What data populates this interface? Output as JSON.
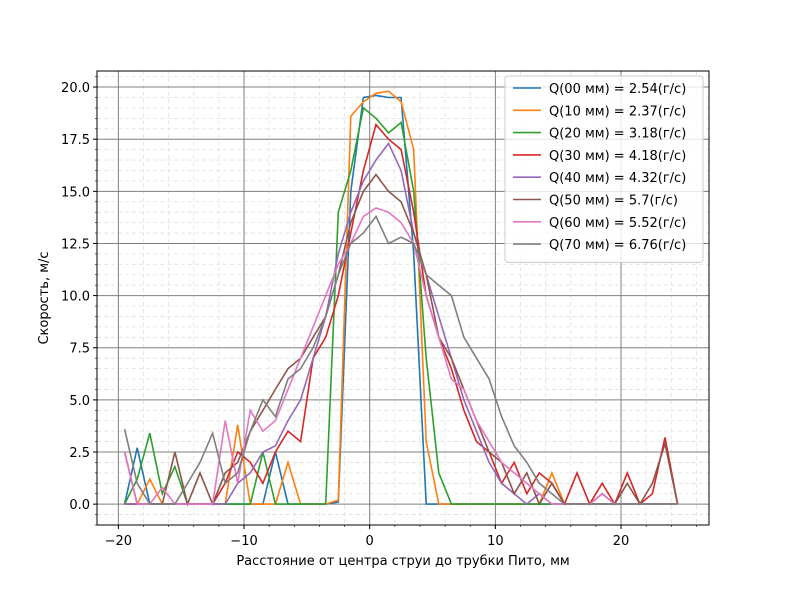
{
  "chart_data": {
    "type": "line",
    "xlabel": "Расстояние от центра струи до трубки Пито, мм",
    "ylabel": "Скорость, м/с",
    "x": [
      -19.5,
      -18.5,
      -17.5,
      -16.5,
      -15.5,
      -14.5,
      -13.5,
      -12.5,
      -11.5,
      -10.5,
      -9.5,
      -8.5,
      -7.5,
      -6.5,
      -5.5,
      -4.5,
      -3.5,
      -2.5,
      -1.5,
      -0.5,
      0.5,
      1.5,
      2.5,
      3.5,
      4.5,
      5.5,
      6.5,
      7.5,
      8.5,
      9.5,
      10.5,
      11.5,
      12.5,
      13.5,
      14.5,
      15.5,
      16.5,
      17.5,
      18.5,
      19.5,
      20.5,
      21.5,
      22.5,
      23.5,
      24.5
    ],
    "series": [
      {
        "name": "Q(00 мм) = 2.54(г/с)",
        "color": "#1f77b4",
        "values": [
          0,
          2.7,
          0,
          0,
          0,
          0,
          0,
          0,
          0,
          0,
          0,
          0,
          2.5,
          0,
          0,
          0,
          0,
          0.1,
          15,
          19.5,
          19.6,
          19.5,
          19.5,
          12,
          0,
          0,
          0,
          0,
          0,
          0,
          0,
          0,
          0,
          0,
          0,
          0,
          0,
          0,
          0,
          0,
          0,
          0,
          0,
          0,
          0
        ]
      },
      {
        "name": "Q(10 мм) = 2.37(г/с)",
        "color": "#ff7f0e",
        "values": [
          0,
          0,
          1.2,
          0,
          0,
          0,
          0,
          0,
          0,
          3.8,
          0,
          0,
          0,
          2,
          0,
          0,
          0,
          0.2,
          18.6,
          19.3,
          19.7,
          19.8,
          19.3,
          17,
          3,
          0,
          0,
          0,
          0,
          0,
          0,
          0,
          0,
          0,
          1.5,
          0,
          0,
          0,
          0,
          0,
          0,
          0,
          0,
          0,
          0
        ]
      },
      {
        "name": "Q(20 мм) = 3.18(г/с)",
        "color": "#2ca02c",
        "values": [
          0,
          1.2,
          3.4,
          0.5,
          1.8,
          0,
          0,
          0,
          0,
          0,
          0,
          2.5,
          0,
          0,
          0,
          0,
          0,
          14,
          16,
          19,
          18.5,
          17.8,
          18.3,
          15,
          7,
          1.5,
          0,
          0,
          0,
          0,
          0,
          0,
          0,
          0,
          0,
          0,
          0,
          0,
          0,
          0,
          0,
          0,
          0,
          0,
          0
        ]
      },
      {
        "name": "Q(30 мм) = 4.18(г/с)",
        "color": "#d62728",
        "values": [
          0,
          0,
          0,
          0,
          0,
          0,
          0,
          0,
          1,
          2.5,
          2,
          1,
          2.5,
          3.5,
          3,
          7,
          8,
          10,
          13,
          16,
          18.2,
          17.5,
          17,
          14,
          10,
          8,
          6.5,
          4.5,
          3,
          2.5,
          1,
          2,
          0.5,
          1.5,
          1,
          0,
          1.5,
          0,
          1,
          0,
          1.5,
          0,
          0.5,
          3.2,
          0
        ]
      },
      {
        "name": "Q(40 мм) = 4.32(г/с)",
        "color": "#9467bd",
        "values": [
          0,
          0,
          0,
          0,
          0,
          0,
          0,
          0,
          0,
          1,
          1.5,
          2.5,
          2.8,
          4,
          5,
          7,
          9,
          12,
          14,
          15.5,
          16.5,
          17.3,
          16,
          13,
          11,
          9,
          7,
          5,
          3.5,
          2,
          1,
          0.5,
          0,
          0.5,
          0,
          0,
          0,
          0,
          0,
          0,
          0,
          0,
          0,
          0,
          0
        ]
      },
      {
        "name": "Q(50 мм) = 5.7(г/с)",
        "color": "#8c564b",
        "values": [
          2.5,
          0,
          0,
          0,
          2.5,
          0,
          1.5,
          0,
          1.5,
          2,
          3.5,
          4.5,
          5.5,
          6.5,
          7,
          8,
          9,
          11,
          13.5,
          15,
          15.8,
          15,
          14.5,
          13,
          11,
          8,
          7,
          5.5,
          4,
          2.5,
          2,
          0.5,
          1.5,
          0,
          1,
          0,
          0,
          0,
          0.5,
          0,
          1,
          0,
          1,
          2.9,
          0
        ]
      },
      {
        "name": "Q(60 мм) = 5.52(г/с)",
        "color": "#e377c2",
        "values": [
          2.5,
          0,
          0,
          0.8,
          0,
          0,
          0,
          0,
          4,
          1,
          4.5,
          3.5,
          4,
          5.5,
          7,
          8.5,
          10,
          11.5,
          12.5,
          13.8,
          14.2,
          14,
          13.5,
          12.5,
          10,
          8,
          6,
          5.5,
          4,
          3,
          2,
          1.5,
          1,
          0.5,
          0,
          0,
          0,
          0,
          0.5,
          0,
          0,
          0,
          0,
          0,
          0
        ]
      },
      {
        "name": "Q(70 мм) = 6.76(г/с)",
        "color": "#7f7f7f",
        "values": [
          3.6,
          1,
          0,
          0,
          0,
          1,
          2,
          3.4,
          1,
          1.5,
          3.5,
          5,
          4.2,
          6,
          6.5,
          7.5,
          9,
          11,
          12.5,
          13,
          13.8,
          12.5,
          12.8,
          12.5,
          11,
          10.5,
          10,
          8,
          7,
          6,
          4.2,
          2.8,
          2,
          1,
          0.5,
          0,
          0,
          0,
          0,
          0,
          0,
          0,
          0,
          0,
          0
        ]
      }
    ],
    "xlim": [
      -21.7,
      27.0
    ],
    "ylim": [
      -1.0,
      20.77
    ],
    "xticks": [
      {
        "value": -20,
        "label": "−20"
      },
      {
        "value": -10,
        "label": "−10"
      },
      0,
      10,
      20
    ],
    "yticks": [
      {
        "value": 0,
        "label": "0.0"
      },
      2.5,
      {
        "value": 5,
        "label": "5.0"
      },
      7.5,
      {
        "value": 10,
        "label": "10.0"
      },
      12.5,
      {
        "value": 15,
        "label": "15.0"
      },
      17.5,
      {
        "value": 20,
        "label": "20.0"
      }
    ],
    "grid": true,
    "minor_grid": true,
    "legend": "upper right"
  }
}
